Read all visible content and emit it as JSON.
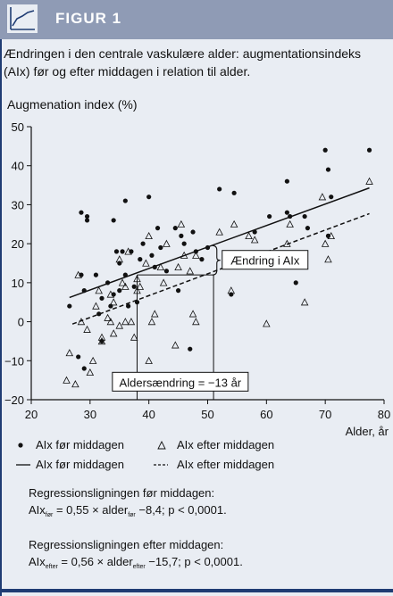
{
  "header": {
    "title": "FIGUR 1",
    "icon": "line-chart-icon"
  },
  "caption": "Ændringen i den centrale vaskulære alder: augmentationsindeks (AIx) før og efter middagen i relation til alder.",
  "chart_data": {
    "type": "scatter",
    "ylabel": "Augmenation index (%)",
    "xlabel": "Alder, år",
    "xlim": [
      20,
      80
    ],
    "ylim": [
      -20,
      50
    ],
    "xticks": [
      "20",
      "30",
      "40",
      "50",
      "60",
      "70",
      "80"
    ],
    "yticks": [
      "−20",
      "−10",
      "0",
      "10",
      "20",
      "30",
      "40",
      "50"
    ],
    "grid": false,
    "series": [
      {
        "name": "AIx før middagen",
        "marker": "dot",
        "points": [
          [
            26.5,
            4
          ],
          [
            28,
            -9
          ],
          [
            28.5,
            12
          ],
          [
            28.5,
            28
          ],
          [
            29,
            -12
          ],
          [
            29.5,
            26
          ],
          [
            29,
            8
          ],
          [
            29.5,
            27
          ],
          [
            31,
            12
          ],
          [
            31.5,
            2
          ],
          [
            32,
            6
          ],
          [
            32,
            -5
          ],
          [
            33,
            10
          ],
          [
            33.5,
            4
          ],
          [
            34,
            7
          ],
          [
            34,
            26
          ],
          [
            34.5,
            18
          ],
          [
            35,
            15
          ],
          [
            35,
            8
          ],
          [
            35.5,
            18
          ],
          [
            36,
            31
          ],
          [
            36,
            12
          ],
          [
            36.5,
            4
          ],
          [
            37,
            18
          ],
          [
            37.5,
            9
          ],
          [
            38,
            5
          ],
          [
            38.5,
            16
          ],
          [
            39,
            20
          ],
          [
            40,
            32
          ],
          [
            40.5,
            17
          ],
          [
            41,
            14
          ],
          [
            41.5,
            24
          ],
          [
            42,
            19
          ],
          [
            43,
            13
          ],
          [
            44.5,
            24
          ],
          [
            45,
            8
          ],
          [
            45.5,
            22
          ],
          [
            46,
            20
          ],
          [
            47,
            -7
          ],
          [
            47.5,
            23
          ],
          [
            48,
            18
          ],
          [
            49,
            16
          ],
          [
            50,
            19
          ],
          [
            52,
            34
          ],
          [
            54,
            7
          ],
          [
            54.5,
            33
          ],
          [
            58,
            23
          ],
          [
            60,
            14
          ],
          [
            60.5,
            27
          ],
          [
            63.5,
            36
          ],
          [
            63.5,
            28
          ],
          [
            64,
            27
          ],
          [
            65,
            10
          ],
          [
            66.5,
            27
          ],
          [
            67,
            24
          ],
          [
            70,
            44
          ],
          [
            70.5,
            39
          ],
          [
            70.5,
            22
          ],
          [
            71,
            32
          ],
          [
            77.5,
            44
          ]
        ]
      },
      {
        "name": "AIx efter middagen",
        "marker": "triangle",
        "points": [
          [
            26,
            -15
          ],
          [
            26.5,
            -8
          ],
          [
            27.5,
            -16
          ],
          [
            28,
            12
          ],
          [
            28.5,
            0
          ],
          [
            29.5,
            -2
          ],
          [
            30,
            -13
          ],
          [
            30.5,
            -10
          ],
          [
            31,
            4
          ],
          [
            31.5,
            8
          ],
          [
            32,
            -4
          ],
          [
            32,
            -5
          ],
          [
            33,
            1
          ],
          [
            33.5,
            0
          ],
          [
            33.5,
            7
          ],
          [
            34,
            -3
          ],
          [
            34,
            5
          ],
          [
            35,
            16
          ],
          [
            35,
            -1
          ],
          [
            35.5,
            10
          ],
          [
            36,
            9
          ],
          [
            36,
            0
          ],
          [
            36.5,
            18
          ],
          [
            37,
            0
          ],
          [
            37.5,
            -4
          ],
          [
            38,
            11
          ],
          [
            38,
            8
          ],
          [
            38.5,
            9
          ],
          [
            39.5,
            15
          ],
          [
            40,
            22
          ],
          [
            40,
            -10
          ],
          [
            40.5,
            0
          ],
          [
            41,
            2
          ],
          [
            42,
            14
          ],
          [
            42.5,
            10
          ],
          [
            43,
            20
          ],
          [
            44.5,
            -6
          ],
          [
            45,
            14
          ],
          [
            45.5,
            25
          ],
          [
            46,
            17
          ],
          [
            47,
            13
          ],
          [
            47.5,
            2
          ],
          [
            48,
            0
          ],
          [
            48,
            17
          ],
          [
            52,
            23
          ],
          [
            54,
            8
          ],
          [
            54.5,
            25
          ],
          [
            57,
            22
          ],
          [
            58,
            21
          ],
          [
            60,
            -0.5
          ],
          [
            63.5,
            20
          ],
          [
            64,
            25
          ],
          [
            66.5,
            5
          ],
          [
            69.5,
            32
          ],
          [
            70,
            20
          ],
          [
            70.5,
            16
          ],
          [
            71,
            22
          ],
          [
            77.5,
            36
          ]
        ]
      }
    ],
    "lines": [
      {
        "name": "AIx før middagen",
        "style": "solid",
        "x": [
          26.5,
          77.5
        ],
        "y": [
          6.2,
          34.3
        ]
      },
      {
        "name": "AIx efter middagen",
        "style": "dashed",
        "x": [
          27,
          77.5
        ],
        "y": [
          -0.6,
          27.7
        ]
      }
    ],
    "annotations": {
      "brace_label": "Ændring i AIx",
      "age_change_label": "Aldersændring = −13 år",
      "ref_before_x": 38,
      "ref_after_x": 51,
      "ref_y": 12
    }
  },
  "legend": {
    "dot_before": "AIx før middagen",
    "tri_after": "AIx efter middagen",
    "line_before": "AIx før middagen",
    "line_after": "AIx efter middagen"
  },
  "regression": {
    "before_title": "Regressionsligningen før middagen:",
    "before_lhs": "AIx",
    "before_lhs_sub": "før",
    "before_mid": " = 0,55 × alder",
    "before_mid_sub": "før",
    "before_rhs": " −8,4; p < 0,0001.",
    "after_title": "Regressionsligningen efter middagen:",
    "after_lhs": "AIx",
    "after_lhs_sub": "efter",
    "after_mid": " = 0,56 × alder",
    "after_mid_sub": "efter",
    "after_rhs": " −15,7; p < 0,0001."
  }
}
